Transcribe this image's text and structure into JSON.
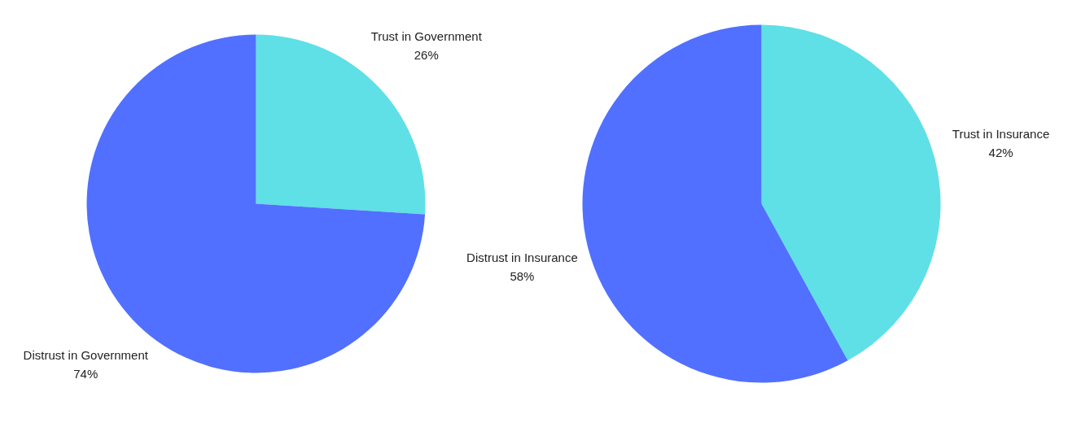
{
  "chart_data": [
    {
      "type": "pie",
      "categories": [
        "Trust in Government",
        "Distrust in Government"
      ],
      "values": [
        26,
        74
      ],
      "colors": [
        "#5ee0e6",
        "#5170ff"
      ],
      "value_labels": [
        "26%",
        "74%"
      ]
    },
    {
      "type": "pie",
      "categories": [
        "Trust in Insurance",
        "Distrust in Insurance"
      ],
      "values": [
        42,
        58
      ],
      "colors": [
        "#5ee0e6",
        "#5170ff"
      ],
      "value_labels": [
        "42%",
        "58%"
      ]
    }
  ]
}
